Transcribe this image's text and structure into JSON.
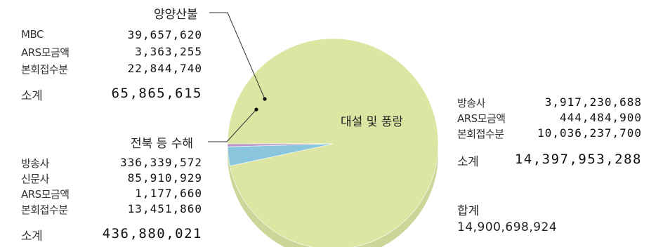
{
  "chart_data": {
    "type": "pie",
    "slices": [
      {
        "name": "대설 및 풍랑",
        "value": 14397953288,
        "color": "#dde5a3"
      },
      {
        "name": "전북 등 수해",
        "value": 436880021,
        "color": "#89c5dd"
      },
      {
        "name": "양양산불",
        "value": 65865615,
        "color": "#b898c6"
      }
    ]
  },
  "groups": {
    "yangyang": {
      "rows": [
        {
          "label": "MBC",
          "value": "39,657,620"
        },
        {
          "label": "ARS모금액",
          "value": "3,363,255"
        },
        {
          "label": "본회접수분",
          "value": "22,844,740"
        }
      ],
      "subtotal_label": "소계",
      "subtotal_value": "65,865,615"
    },
    "jeonbuk": {
      "rows": [
        {
          "label": "방송사",
          "value": "336,339,572"
        },
        {
          "label": "신문사",
          "value": "85,910,929"
        },
        {
          "label": "ARS모금액",
          "value": "1,177,660"
        },
        {
          "label": "본회접수분",
          "value": "13,451,860"
        }
      ],
      "subtotal_label": "소계",
      "subtotal_value": "436,880,021"
    },
    "daeseol": {
      "rows": [
        {
          "label": "방송사",
          "value": "3,917,230,688"
        },
        {
          "label": "ARS모금액",
          "value": "444,484,900"
        },
        {
          "label": "본회접수분",
          "value": "10,036,237,700"
        }
      ],
      "subtotal_label": "소계",
      "subtotal_value": "14,397,953,288"
    }
  },
  "callouts": {
    "yangyang": "양양산불",
    "jeonbuk": "전북 등 수해",
    "daeseol": "대설 및 풍랑"
  },
  "total": {
    "label": "합계",
    "value": "14,900,698,924"
  }
}
